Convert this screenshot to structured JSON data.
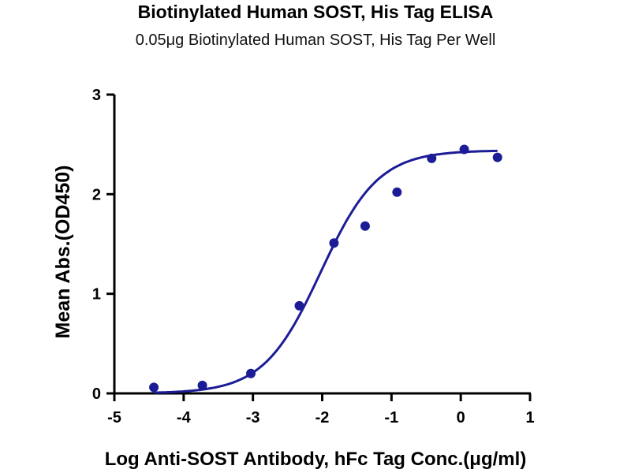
{
  "chart_data": {
    "type": "scatter",
    "title": "Biotinylated Human SOST, His Tag ELISA",
    "subtitle": "0.05μg Biotinylated Human SOST, His Tag Per Well",
    "xlabel": "Log Anti-SOST Antibody, hFc Tag Conc.(μg/ml)",
    "ylabel": "Mean Abs.(OD450)",
    "xlim": [
      -5,
      1
    ],
    "ylim": [
      0,
      3
    ],
    "x_ticks": [
      "-5",
      "-4",
      "-3",
      "-2",
      "-1",
      "0",
      "1"
    ],
    "y_ticks": [
      "0",
      "1",
      "2",
      "3"
    ],
    "grid": false,
    "series": [
      {
        "kind": "points",
        "x": [
          -4.43,
          -3.73,
          -3.03,
          -2.33,
          -1.83,
          -1.38,
          -0.92,
          -0.42,
          0.05,
          0.53
        ],
        "y": [
          0.06,
          0.08,
          0.2,
          0.88,
          1.51,
          1.68,
          2.02,
          2.36,
          2.45,
          2.37
        ]
      },
      {
        "kind": "fit-curve",
        "model": "4PL",
        "bottom": 0.0,
        "top": 2.44,
        "logEC50": -2.02,
        "hill": 1.05,
        "x_range": [
          -4.43,
          0.53
        ]
      }
    ],
    "colors": {
      "series": "#1c1c96",
      "axis": "#000000"
    }
  }
}
